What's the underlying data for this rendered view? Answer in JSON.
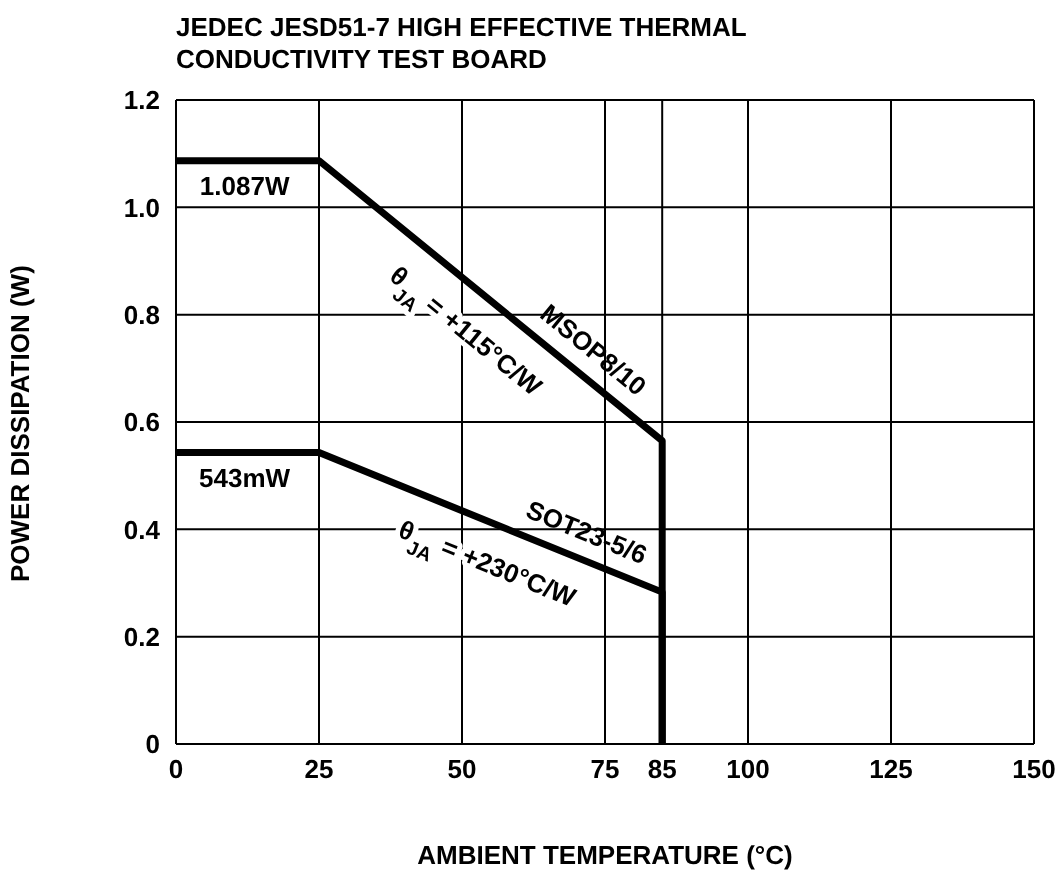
{
  "chart_data": {
    "type": "line",
    "title": "JEDEC JESD51-7 HIGH EFFECTIVE THERMAL CONDUCTIVITY TEST BOARD",
    "xlabel": "AMBIENT TEMPERATURE (°C)",
    "ylabel": "POWER DISSIPATION (W)",
    "series": [
      {
        "name": "MSOP8/10",
        "color": "#000000",
        "x": [
          0,
          25,
          85,
          85
        ],
        "values": [
          1.087,
          1.087,
          0.565,
          0
        ]
      },
      {
        "name": "SOT23-5/6",
        "color": "#000000",
        "x": [
          0,
          25,
          85,
          85
        ],
        "values": [
          0.543,
          0.543,
          0.283,
          0
        ]
      }
    ],
    "annotations": [
      {
        "text": "1.087W",
        "x": 12,
        "y": 1.087
      },
      {
        "text": "543mW",
        "x": 12,
        "y": 0.543
      },
      {
        "text": "θ$_{JA}$ = +115°C/W",
        "x": 55,
        "y": 0.826
      },
      {
        "text": "θ$_{JA}$ = +230°C/W",
        "x": 57,
        "y": 0.404
      }
    ],
    "xlim": [
      0,
      150
    ],
    "xticks": [
      0,
      25,
      50,
      75,
      85,
      100,
      125,
      150
    ],
    "ylim": [
      0,
      1.2
    ],
    "yticks": [
      0,
      0.2,
      0.4,
      0.6,
      0.8,
      {
        "value": 1,
        "label": "1.0"
      },
      1.2
    ],
    "grid": true,
    "legend": false,
    "marker": "none",
    "line_style": "solid"
  }
}
